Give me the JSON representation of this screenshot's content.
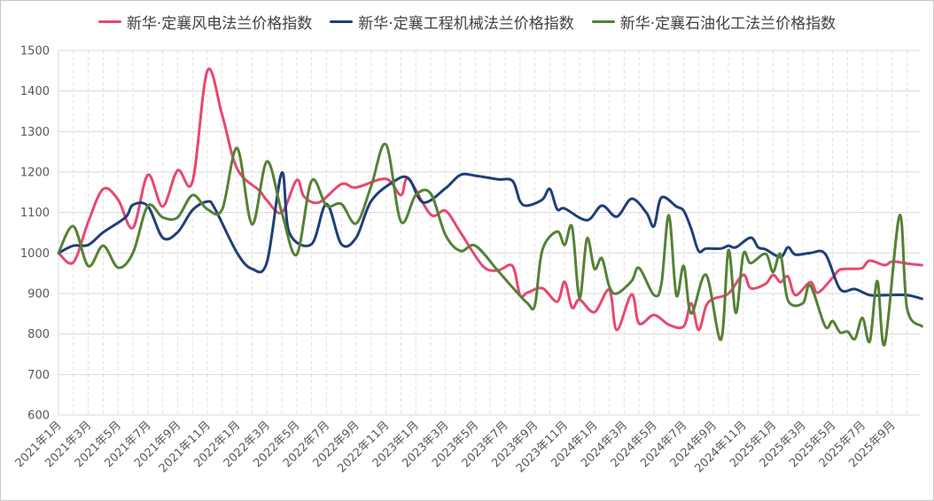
{
  "chart_data": {
    "type": "line",
    "title": "",
    "xlabel": "",
    "ylabel": "",
    "ylim": [
      600,
      1500
    ],
    "yticks": [
      600,
      700,
      800,
      900,
      1000,
      1100,
      1200,
      1300,
      1400,
      1500
    ],
    "xlim": [
      "2021-01-01",
      "2025-11-01"
    ],
    "xtick_labels": [
      "2021年1月",
      "2021年3月",
      "2021年5月",
      "2021年7月",
      "2021年9月",
      "2021年11月",
      "2022年1月",
      "2022年3月",
      "2022年5月",
      "2022年7月",
      "2022年9月",
      "2022年11月",
      "2023年1月",
      "2023年3月",
      "2023年5月",
      "2023年7月",
      "2023年9月",
      "2023年11月",
      "2024年1月",
      "2024年3月",
      "2024年5月",
      "2024年7月",
      "2024年9月",
      "2024年11月",
      "2025年1月",
      "2025年3月",
      "2025年5月",
      "2025年7月",
      "2025年9月"
    ],
    "grid": {
      "horizontal": true,
      "vertical": "dashed"
    },
    "legend_position": "top",
    "series": [
      {
        "name": "新华·定襄风电法兰价格指数",
        "color": "#e8486e",
        "points": [
          [
            "2021-01-01",
            1000
          ],
          [
            "2021-02-01",
            977
          ],
          [
            "2021-03-01",
            1077
          ],
          [
            "2021-04-01",
            1158
          ],
          [
            "2021-05-01",
            1132
          ],
          [
            "2021-06-01",
            1062
          ],
          [
            "2021-07-01",
            1193
          ],
          [
            "2021-08-01",
            1115
          ],
          [
            "2021-09-01",
            1204
          ],
          [
            "2021-10-01",
            1176
          ],
          [
            "2021-11-01",
            1450
          ],
          [
            "2021-12-01",
            1340
          ],
          [
            "2022-01-01",
            1208
          ],
          [
            "2022-02-16",
            1154
          ],
          [
            "2022-03-01",
            1130
          ],
          [
            "2022-04-01",
            1100
          ],
          [
            "2022-05-01",
            1180
          ],
          [
            "2022-05-16",
            1139
          ],
          [
            "2022-06-16",
            1125
          ],
          [
            "2022-08-01",
            1170
          ],
          [
            "2022-09-01",
            1162
          ],
          [
            "2022-11-01",
            1183
          ],
          [
            "2022-12-01",
            1143
          ],
          [
            "2022-12-16",
            1183
          ],
          [
            "2023-02-01",
            1095
          ],
          [
            "2023-03-01",
            1104
          ],
          [
            "2023-04-01",
            1051
          ],
          [
            "2023-05-16",
            968
          ],
          [
            "2023-06-16",
            957
          ],
          [
            "2023-07-16",
            968
          ],
          [
            "2023-08-01",
            896
          ],
          [
            "2023-08-16",
            902
          ],
          [
            "2023-09-16",
            913
          ],
          [
            "2023-10-16",
            880
          ],
          [
            "2023-11-01",
            929
          ],
          [
            "2023-11-16",
            865
          ],
          [
            "2023-12-01",
            885
          ],
          [
            "2024-01-01",
            854
          ],
          [
            "2024-02-01",
            909
          ],
          [
            "2024-02-16",
            810
          ],
          [
            "2024-03-16",
            898
          ],
          [
            "2024-04-01",
            826
          ],
          [
            "2024-05-01",
            847
          ],
          [
            "2024-06-01",
            823
          ],
          [
            "2024-07-01",
            819
          ],
          [
            "2024-07-16",
            876
          ],
          [
            "2024-08-01",
            810
          ],
          [
            "2024-08-16",
            869
          ],
          [
            "2024-09-01",
            887
          ],
          [
            "2024-10-01",
            900
          ],
          [
            "2024-11-01",
            946
          ],
          [
            "2024-11-16",
            913
          ],
          [
            "2024-12-16",
            924
          ],
          [
            "2025-01-01",
            946
          ],
          [
            "2025-01-16",
            928
          ],
          [
            "2025-02-01",
            942
          ],
          [
            "2025-02-16",
            896
          ],
          [
            "2025-03-16",
            928
          ],
          [
            "2025-04-01",
            902
          ],
          [
            "2025-05-01",
            939
          ],
          [
            "2025-05-16",
            959
          ],
          [
            "2025-06-16",
            961
          ],
          [
            "2025-07-01",
            963
          ],
          [
            "2025-07-16",
            981
          ],
          [
            "2025-08-16",
            970
          ],
          [
            "2025-09-01",
            979
          ],
          [
            "2025-10-01",
            974
          ],
          [
            "2025-11-01",
            970
          ]
        ]
      },
      {
        "name": "新华·定襄工程机械法兰价格指数",
        "color": "#1f3f78",
        "points": [
          [
            "2021-01-01",
            1000
          ],
          [
            "2021-02-01",
            1018
          ],
          [
            "2021-03-01",
            1020
          ],
          [
            "2021-04-01",
            1051
          ],
          [
            "2021-05-16",
            1088
          ],
          [
            "2021-06-01",
            1119
          ],
          [
            "2021-07-01",
            1116
          ],
          [
            "2021-08-01",
            1038
          ],
          [
            "2021-09-01",
            1051
          ],
          [
            "2021-10-01",
            1106
          ],
          [
            "2021-11-01",
            1127
          ],
          [
            "2021-11-16",
            1110
          ],
          [
            "2022-01-01",
            1000
          ],
          [
            "2022-02-01",
            961
          ],
          [
            "2022-03-01",
            977
          ],
          [
            "2022-04-01",
            1198
          ],
          [
            "2022-04-16",
            1051
          ],
          [
            "2022-06-01",
            1022
          ],
          [
            "2022-07-01",
            1121
          ],
          [
            "2022-08-01",
            1022
          ],
          [
            "2022-09-01",
            1038
          ],
          [
            "2022-10-01",
            1128
          ],
          [
            "2022-11-16",
            1176
          ],
          [
            "2022-12-16",
            1185
          ],
          [
            "2023-01-16",
            1125
          ],
          [
            "2023-03-01",
            1160
          ],
          [
            "2023-04-01",
            1193
          ],
          [
            "2023-05-01",
            1191
          ],
          [
            "2023-06-16",
            1182
          ],
          [
            "2023-07-16",
            1178
          ],
          [
            "2023-08-01",
            1128
          ],
          [
            "2023-08-16",
            1117
          ],
          [
            "2023-09-16",
            1132
          ],
          [
            "2023-10-01",
            1158
          ],
          [
            "2023-10-16",
            1108
          ],
          [
            "2023-11-01",
            1110
          ],
          [
            "2023-12-16",
            1081
          ],
          [
            "2024-01-16",
            1117
          ],
          [
            "2024-02-16",
            1090
          ],
          [
            "2024-03-16",
            1134
          ],
          [
            "2024-04-16",
            1099
          ],
          [
            "2024-05-01",
            1066
          ],
          [
            "2024-05-16",
            1137
          ],
          [
            "2024-06-16",
            1115
          ],
          [
            "2024-07-01",
            1104
          ],
          [
            "2024-07-16",
            1060
          ],
          [
            "2024-08-01",
            1005
          ],
          [
            "2024-08-16",
            1011
          ],
          [
            "2024-09-16",
            1011
          ],
          [
            "2024-10-01",
            1018
          ],
          [
            "2024-10-16",
            1014
          ],
          [
            "2024-11-16",
            1038
          ],
          [
            "2024-12-01",
            1014
          ],
          [
            "2024-12-16",
            1009
          ],
          [
            "2025-01-16",
            990
          ],
          [
            "2025-02-01",
            1014
          ],
          [
            "2025-02-16",
            996
          ],
          [
            "2025-03-16",
            1000
          ],
          [
            "2025-04-16",
            998
          ],
          [
            "2025-05-16",
            911
          ],
          [
            "2025-06-16",
            911
          ],
          [
            "2025-07-16",
            896
          ],
          [
            "2025-08-16",
            896
          ],
          [
            "2025-10-01",
            896
          ],
          [
            "2025-11-01",
            887
          ]
        ]
      },
      {
        "name": "新华·定襄石油化工法兰价格指数",
        "color": "#548235",
        "points": [
          [
            "2021-01-01",
            1000
          ],
          [
            "2021-02-01",
            1066
          ],
          [
            "2021-03-01",
            968
          ],
          [
            "2021-04-01",
            1018
          ],
          [
            "2021-05-01",
            964
          ],
          [
            "2021-06-01",
            1000
          ],
          [
            "2021-07-01",
            1116
          ],
          [
            "2021-08-01",
            1088
          ],
          [
            "2021-09-01",
            1088
          ],
          [
            "2021-10-01",
            1143
          ],
          [
            "2021-11-01",
            1108
          ],
          [
            "2021-12-01",
            1108
          ],
          [
            "2022-01-01",
            1259
          ],
          [
            "2022-02-01",
            1071
          ],
          [
            "2022-03-01",
            1226
          ],
          [
            "2022-04-01",
            1100
          ],
          [
            "2022-05-01",
            996
          ],
          [
            "2022-06-01",
            1178
          ],
          [
            "2022-07-01",
            1117
          ],
          [
            "2022-08-01",
            1121
          ],
          [
            "2022-09-01",
            1073
          ],
          [
            "2022-10-01",
            1165
          ],
          [
            "2022-11-01",
            1268
          ],
          [
            "2022-12-01",
            1078
          ],
          [
            "2023-01-01",
            1143
          ],
          [
            "2023-02-01",
            1147
          ],
          [
            "2023-03-01",
            1044
          ],
          [
            "2023-04-01",
            1005
          ],
          [
            "2023-05-01",
            1018
          ],
          [
            "2023-06-16",
            957
          ],
          [
            "2023-07-16",
            915
          ],
          [
            "2023-08-16",
            876
          ],
          [
            "2023-09-01",
            871
          ],
          [
            "2023-09-16",
            1007
          ],
          [
            "2023-10-16",
            1053
          ],
          [
            "2023-11-01",
            1020
          ],
          [
            "2023-11-16",
            1064
          ],
          [
            "2023-12-01",
            889
          ],
          [
            "2023-12-16",
            1036
          ],
          [
            "2024-01-01",
            961
          ],
          [
            "2024-01-16",
            987
          ],
          [
            "2024-02-01",
            917
          ],
          [
            "2024-02-16",
            900
          ],
          [
            "2024-03-16",
            931
          ],
          [
            "2024-04-01",
            963
          ],
          [
            "2024-05-01",
            896
          ],
          [
            "2024-05-16",
            924
          ],
          [
            "2024-06-01",
            1093
          ],
          [
            "2024-06-16",
            896
          ],
          [
            "2024-07-01",
            968
          ],
          [
            "2024-07-16",
            851
          ],
          [
            "2024-08-16",
            946
          ],
          [
            "2024-09-16",
            786
          ],
          [
            "2024-10-01",
            1007
          ],
          [
            "2024-10-16",
            852
          ],
          [
            "2024-11-01",
            997
          ],
          [
            "2024-11-16",
            975
          ],
          [
            "2024-12-16",
            998
          ],
          [
            "2025-01-01",
            953
          ],
          [
            "2025-01-16",
            997
          ],
          [
            "2025-02-01",
            883
          ],
          [
            "2025-03-01",
            876
          ],
          [
            "2025-03-16",
            920
          ],
          [
            "2025-04-16",
            819
          ],
          [
            "2025-05-01",
            832
          ],
          [
            "2025-05-16",
            804
          ],
          [
            "2025-06-01",
            806
          ],
          [
            "2025-06-16",
            788
          ],
          [
            "2025-07-01",
            840
          ],
          [
            "2025-07-16",
            782
          ],
          [
            "2025-08-01",
            931
          ],
          [
            "2025-08-16",
            775
          ],
          [
            "2025-09-16",
            1093
          ],
          [
            "2025-10-01",
            863
          ],
          [
            "2025-11-01",
            819
          ]
        ]
      }
    ]
  }
}
